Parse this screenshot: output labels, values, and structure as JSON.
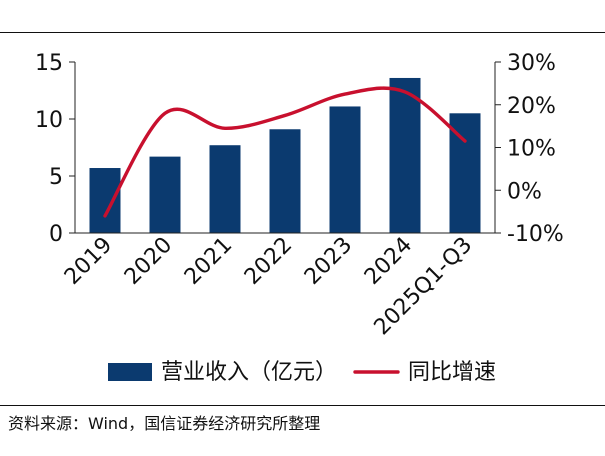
{
  "chart_data": {
    "type": "bar",
    "categories": [
      "2019",
      "2020",
      "2021",
      "2022",
      "2023",
      "2024",
      "2025Q1-Q3"
    ],
    "series": [
      {
        "name": "营业收入（亿元）",
        "type": "bar",
        "axis": "left",
        "color": "#0B3A6F",
        "values": [
          5.7,
          6.7,
          7.7,
          9.1,
          11.1,
          13.6,
          10.5
        ]
      },
      {
        "name": "同比增速",
        "type": "line",
        "axis": "right",
        "color": "#C8102E",
        "values": [
          -6.0,
          18.0,
          14.5,
          17.5,
          22.5,
          23.0,
          11.5
        ]
      }
    ],
    "left_axis": {
      "ylim": [
        0,
        15
      ],
      "ticks": [
        0,
        5,
        10,
        15
      ],
      "tick_labels": [
        "0",
        "5",
        "10",
        "15"
      ]
    },
    "right_axis": {
      "ylim": [
        -10,
        30
      ],
      "ticks": [
        -10,
        0,
        10,
        20,
        30
      ],
      "tick_labels": [
        "-10%",
        "0%",
        "10%",
        "20%",
        "30%"
      ]
    },
    "title": "",
    "xlabel": "",
    "ylabel": "",
    "grid": false,
    "legend_position": "bottom-center"
  },
  "source": {
    "label": "资料来源：Wind，国信证券经济研究所整理"
  }
}
